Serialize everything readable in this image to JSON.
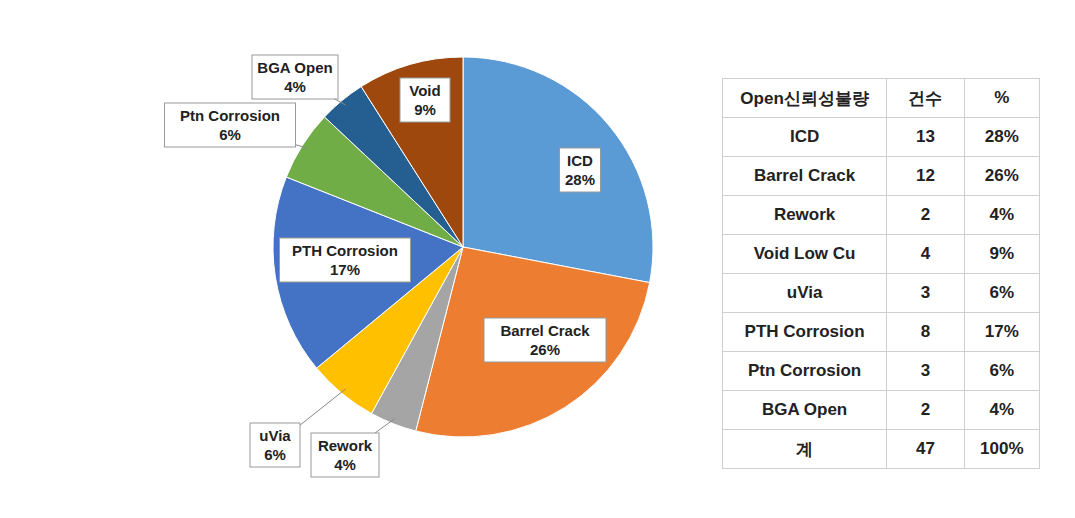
{
  "chart_data": {
    "type": "pie",
    "categories": [
      "ICD",
      "Barrel Crack",
      "Rework",
      "uVia",
      "PTH Corrosion",
      "Ptn Corrosion",
      "BGA Open",
      "Void"
    ],
    "values": [
      28,
      26,
      4,
      6,
      17,
      6,
      4,
      9
    ],
    "value_labels": [
      "28%",
      "26%",
      "4%",
      "6%",
      "17%",
      "6%",
      "4%",
      "9%"
    ],
    "colors": [
      "#5b9bd5",
      "#ed7d31",
      "#a5a5a5",
      "#ffc000",
      "#4472c4",
      "#70ad47",
      "#255e91",
      "#9e480e"
    ],
    "data_labels": true
  },
  "table": {
    "header": [
      "Open신뢰성불량",
      "건수",
      "%"
    ],
    "rows": [
      [
        "ICD",
        13,
        "28%"
      ],
      [
        "Barrel Crack",
        12,
        "26%"
      ],
      [
        "Rework",
        2,
        "4%"
      ],
      [
        "Void Low Cu",
        4,
        "9%"
      ],
      [
        "uVia",
        3,
        "6%"
      ],
      [
        "PTH Corrosion",
        8,
        "17%"
      ],
      [
        "Ptn Corrosion",
        3,
        "6%"
      ],
      [
        "BGA Open",
        2,
        "4%"
      ]
    ],
    "total": [
      "계",
      47,
      "100%"
    ]
  }
}
